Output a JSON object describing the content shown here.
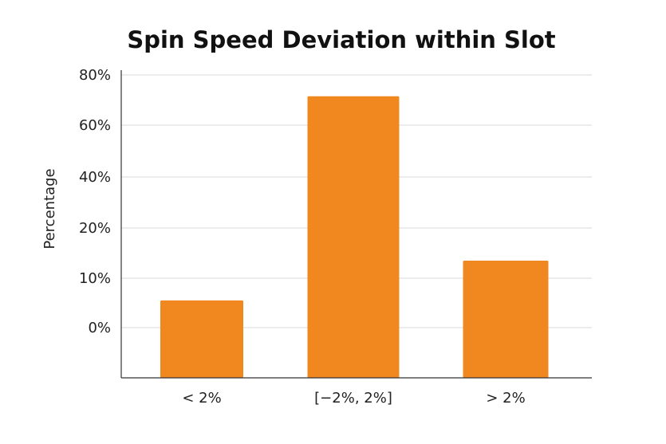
{
  "chart_data": {
    "type": "bar",
    "title": "Spin Speed Deviation within Slot",
    "xlabel": "",
    "ylabel": "Percentage",
    "categories": [
      "< 2%",
      "[−2%, 2%]",
      "> 2%"
    ],
    "values": [
      5.5,
      71.5,
      13.5
    ],
    "y_tick_labels": [
      "0%",
      "10%",
      "20%",
      "40%",
      "60%",
      "80%"
    ],
    "grid": true,
    "colors": {
      "bar": "#f0881f"
    }
  }
}
